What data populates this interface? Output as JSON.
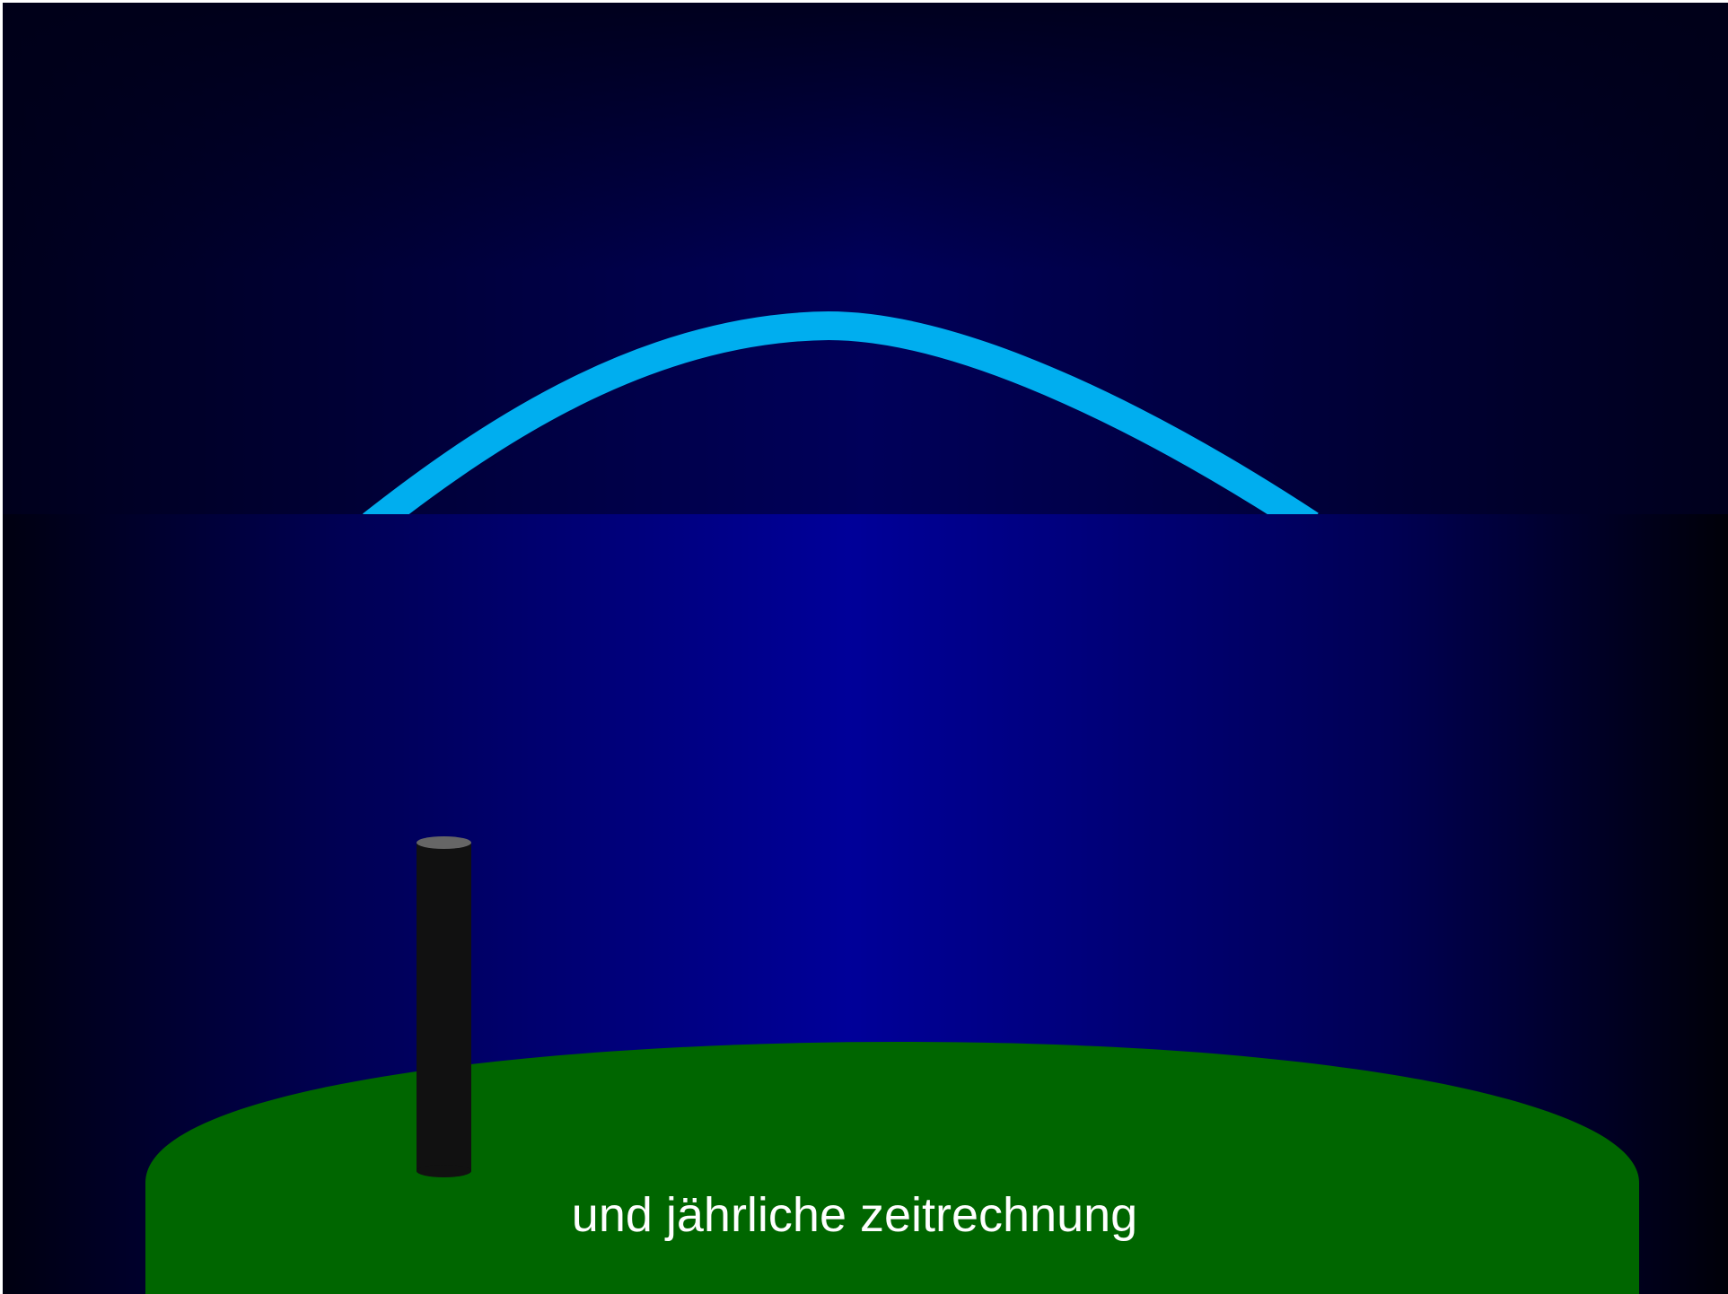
{
  "caption": "und jährliche zeitrechnung"
}
